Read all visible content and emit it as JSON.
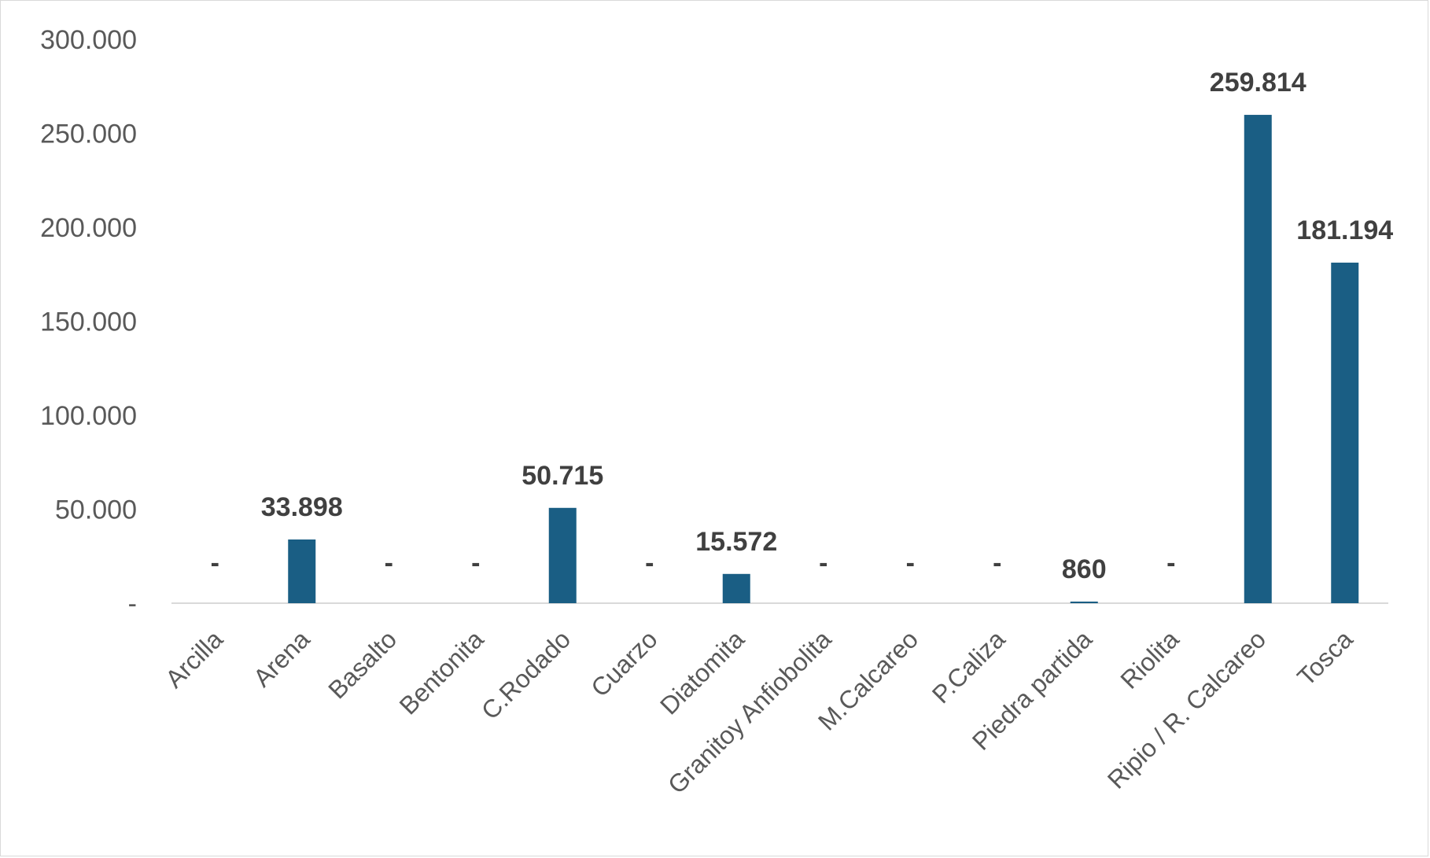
{
  "chart_data": {
    "type": "bar",
    "title": "",
    "xlabel": "",
    "ylabel": "",
    "ylim": [
      0,
      300000
    ],
    "yticks": [
      0,
      50000,
      100000,
      150000,
      200000,
      250000,
      300000
    ],
    "ytick_labels": [
      "-",
      "50.000",
      "100.000",
      "150.000",
      "200.000",
      "250.000",
      "300.000"
    ],
    "grid": false,
    "legend": "none",
    "categories": [
      "Arcilla",
      "Arena",
      "Basalto",
      "Bentonita",
      "C.Rodado",
      "Cuarzo",
      "Diatomita",
      "Granitoy Anfiobolita",
      "M.Calcareo",
      "P.Caliza",
      "Piedra partida",
      "Riolita",
      "Ripio / R. Calcareo",
      "Tosca"
    ],
    "values": [
      0,
      33898,
      0,
      0,
      50715,
      0,
      15572,
      0,
      0,
      0,
      860,
      0,
      259814,
      181194
    ],
    "data_labels": [
      "-",
      "33.898",
      "-",
      "-",
      "50.715",
      "-",
      "15.572",
      "-",
      "-",
      "-",
      "860",
      "-",
      "259.814",
      "181.194"
    ],
    "bar_color": "#1a5e84",
    "axis_color": "#d9d9d9"
  }
}
